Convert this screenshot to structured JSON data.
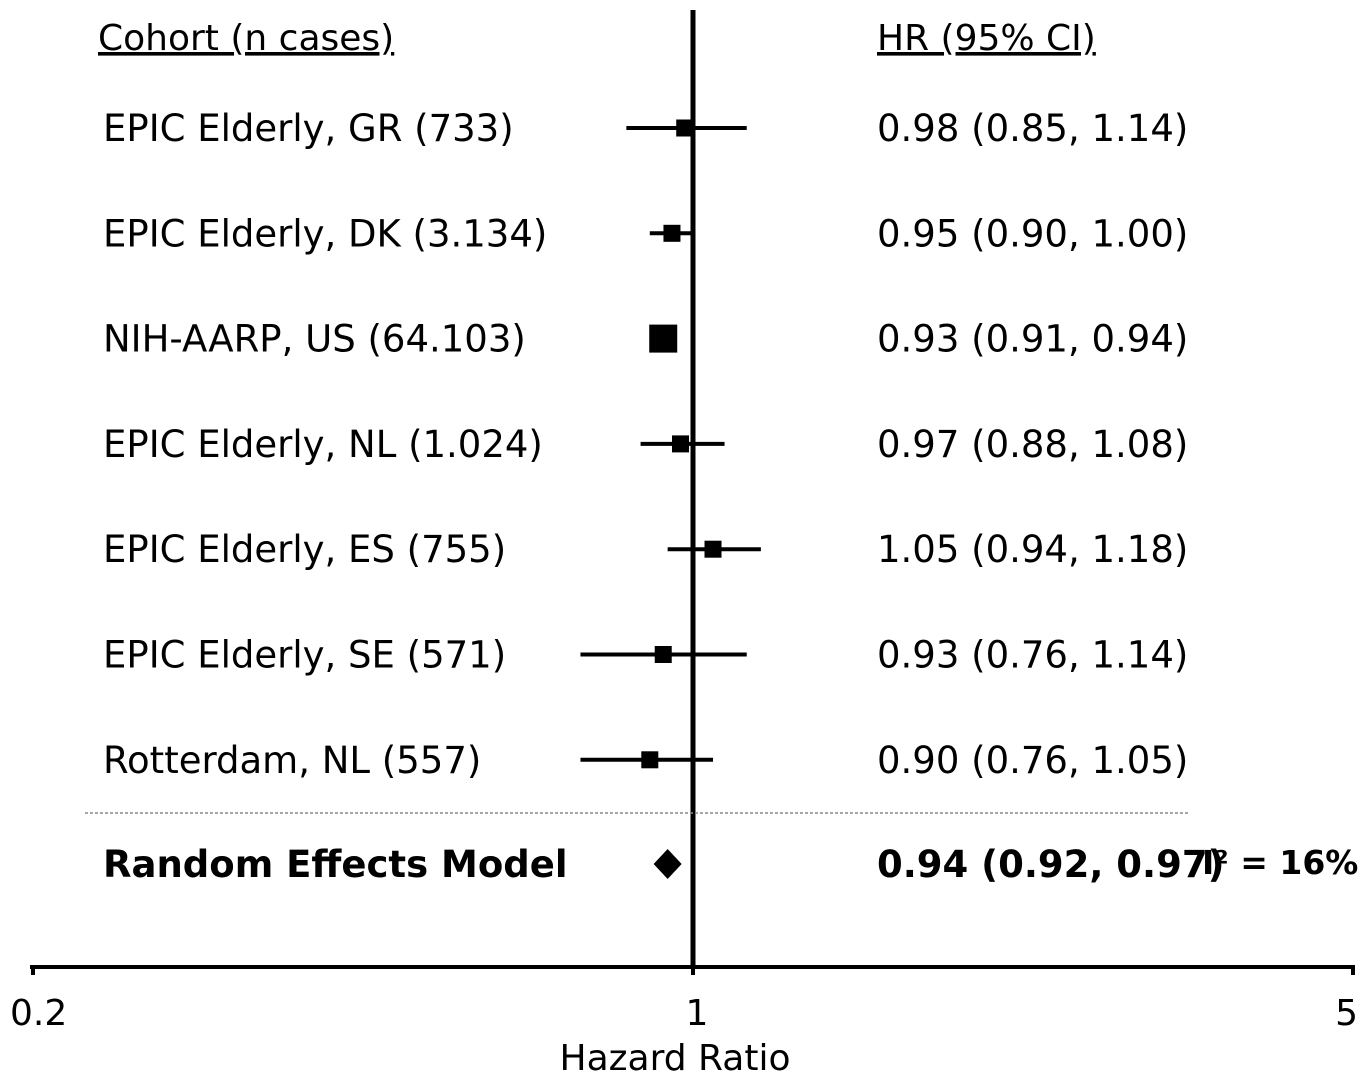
{
  "chart_data": {
    "type": "forest",
    "x_scale": "log",
    "xlim": [
      0.2,
      5
    ],
    "xticks": [
      "0.2",
      "1",
      "5"
    ],
    "reference_line": 1,
    "xlabel": "Hazard Ratio",
    "left_header": "Cohort (n cases)",
    "right_header": "HR (95% CI)",
    "studies": [
      {
        "label": "EPIC Elderly, GR (733)",
        "hr": 0.98,
        "lo": 0.85,
        "hi": 1.14,
        "hr_text": "0.98 (0.85, 1.14)",
        "weight": 1
      },
      {
        "label": "EPIC Elderly, DK (3.134)",
        "hr": 0.95,
        "lo": 0.9,
        "hi": 1.0,
        "hr_text": "0.95 (0.90, 1.00)",
        "weight": 1
      },
      {
        "label": "NIH-AARP, US (64.103)",
        "hr": 0.93,
        "lo": 0.91,
        "hi": 0.94,
        "hr_text": "0.93 (0.91, 0.94)",
        "weight": 3
      },
      {
        "label": "EPIC Elderly, NL (1.024)",
        "hr": 0.97,
        "lo": 0.88,
        "hi": 1.08,
        "hr_text": "0.97 (0.88, 1.08)",
        "weight": 1
      },
      {
        "label": "EPIC Elderly, ES (755)",
        "hr": 1.05,
        "lo": 0.94,
        "hi": 1.18,
        "hr_text": "1.05 (0.94, 1.18)",
        "weight": 1
      },
      {
        "label": "EPIC Elderly, SE (571)",
        "hr": 0.93,
        "lo": 0.76,
        "hi": 1.14,
        "hr_text": "0.93 (0.76, 1.14)",
        "weight": 1
      },
      {
        "label": "Rotterdam, NL (557)",
        "hr": 0.9,
        "lo": 0.76,
        "hi": 1.05,
        "hr_text": "0.90 (0.76, 1.05)",
        "weight": 1
      }
    ],
    "summary": {
      "label": "Random Effects Model",
      "hr": 0.94,
      "lo": 0.92,
      "hi": 0.97,
      "hr_text": "0.94 (0.92, 0.97)",
      "heterogeneity": "I² = 16%"
    }
  }
}
